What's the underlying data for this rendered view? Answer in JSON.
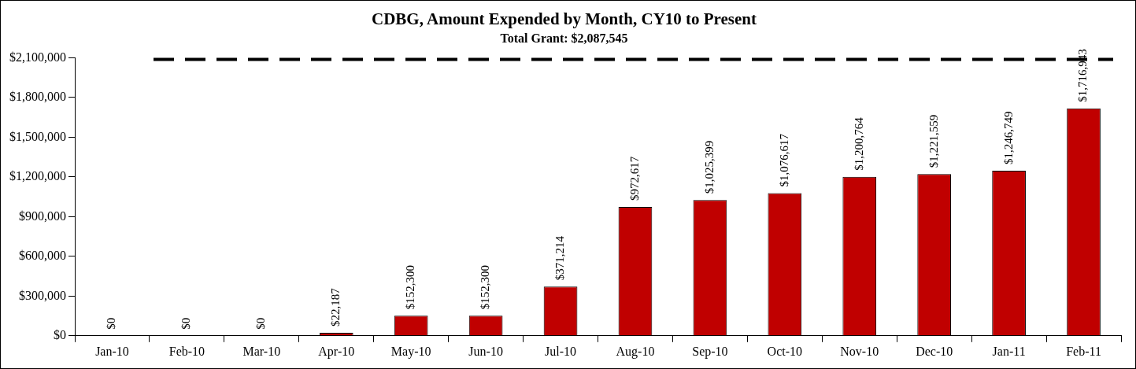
{
  "chart_data": {
    "type": "bar",
    "title": "CDBG, Amount Expended by Month, CY10 to Present",
    "subtitle": "Total Grant: $2,087,545",
    "categories": [
      "Jan-10",
      "Feb-10",
      "Mar-10",
      "Apr-10",
      "May-10",
      "Jun-10",
      "Jul-10",
      "Aug-10",
      "Sep-10",
      "Oct-10",
      "Nov-10",
      "Dec-10",
      "Jan-11",
      "Feb-11"
    ],
    "values": [
      0,
      0,
      0,
      22187,
      152300,
      152300,
      371214,
      972617,
      1025399,
      1076617,
      1200764,
      1221559,
      1246749,
      1716943
    ],
    "value_labels": [
      "$0",
      "$0",
      "$0",
      "$22,187",
      "$152,300",
      "$152,300",
      "$371,214",
      "$972,617",
      "$1,025,399",
      "$1,076,617",
      "$1,200,764",
      "$1,221,559",
      "$1,246,749",
      "$1,716,943"
    ],
    "color": "#c00000",
    "ylim": [
      0,
      2100000
    ],
    "yticks": [
      {
        "value": 0,
        "label": "$0"
      },
      {
        "value": 300000,
        "label": "$300,000"
      },
      {
        "value": 600000,
        "label": "$600,000"
      },
      {
        "value": 900000,
        "label": "$900,000"
      },
      {
        "value": 1200000,
        "label": "$1,200,000"
      },
      {
        "value": 1500000,
        "label": "$1,500,000"
      },
      {
        "value": 1800000,
        "label": "$1,800,000"
      },
      {
        "value": 2100000,
        "label": "$2,100,000"
      }
    ],
    "ref_lines": [
      {
        "axis": "y",
        "value": 2087545,
        "color": "#000000",
        "line_style": "dashed"
      }
    ],
    "grid": false,
    "legend": false
  }
}
